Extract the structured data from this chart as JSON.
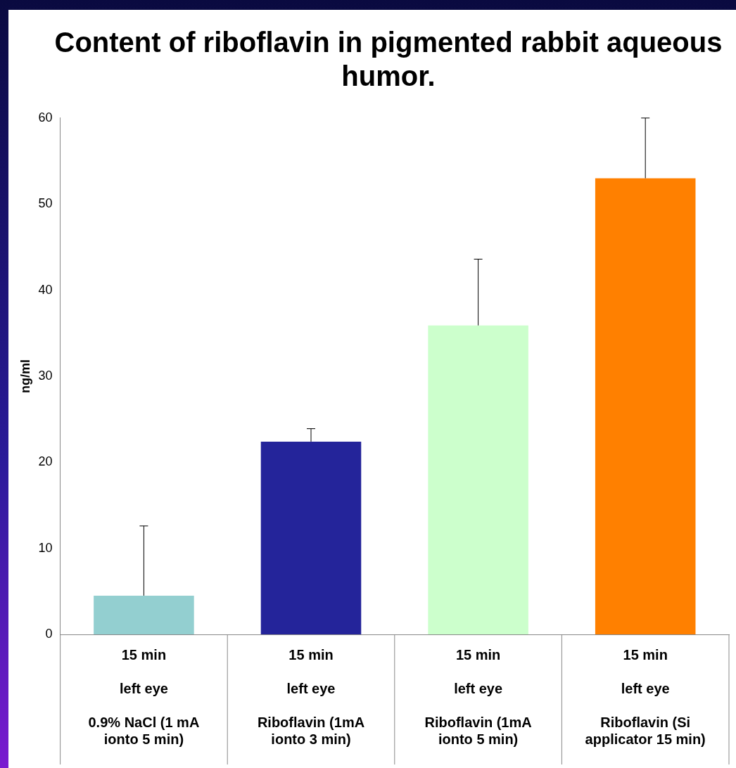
{
  "chart_data": {
    "type": "bar",
    "title": "Content of riboflavin in pigmented rabbit aqueous humor.",
    "ylabel": "ng/ml",
    "categories": [
      "15 min\nleft eye\n0.9% NaCl (1 mA ionto 5 min)",
      "15 min\nleft eye\nRiboflavin (1mA ionto 3 min)",
      "15 min\nleft eye\nRiboflavin (1mA ionto 5 min)",
      "15 min\nleft eye\nRiboflavin (Si applicator 15 min)"
    ],
    "values": [
      4.5,
      22.4,
      35.9,
      53
    ],
    "colors": [
      "#93cfd0",
      "#24249a",
      "#ccffcc",
      "#ff8000"
    ],
    "errors": [
      [
        4.5,
        12.6
      ],
      [
        22.4,
        23.9
      ],
      [
        35.9,
        43.6
      ],
      [
        53,
        60
      ]
    ],
    "ylim": [
      0,
      60
    ],
    "yticks": [
      0,
      10,
      20,
      30,
      40,
      50,
      60
    ],
    "grid": false,
    "legend": false
  }
}
